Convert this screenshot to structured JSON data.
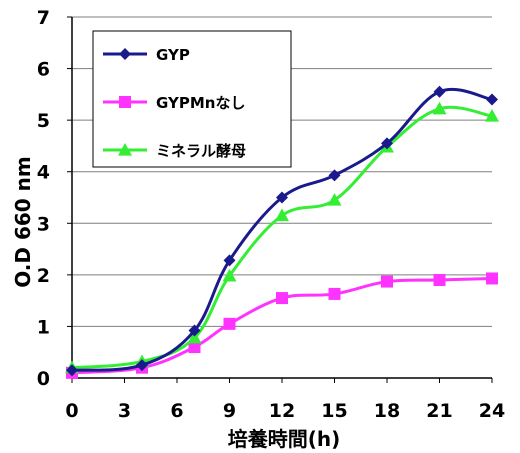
{
  "chart_data": {
    "type": "line",
    "xlabel": "培養時間(h)",
    "ylabel": "O.D 660 nm",
    "xlim": [
      0,
      24
    ],
    "ylim": [
      0,
      7
    ],
    "xticks": [
      "0",
      "3",
      "6",
      "9",
      "12",
      "15",
      "18",
      "21",
      "24"
    ],
    "yticks": [
      "0",
      "1",
      "2",
      "3",
      "4",
      "5",
      "6",
      "7"
    ],
    "grid": "horizontal",
    "legend_position": "top-left",
    "series": [
      {
        "name": "GYP",
        "color": "#1a1a8c",
        "marker": "diamond",
        "points": [
          [
            0,
            0.15
          ],
          [
            4,
            0.25
          ],
          [
            7,
            0.92
          ],
          [
            9,
            2.28
          ],
          [
            12,
            3.5
          ],
          [
            15,
            3.93
          ],
          [
            18,
            4.55
          ],
          [
            21,
            5.55
          ],
          [
            24,
            5.4
          ]
        ]
      },
      {
        "name": "GYPMnなし",
        "color": "#ff33ff",
        "marker": "square",
        "points": [
          [
            0,
            0.1
          ],
          [
            4,
            0.2
          ],
          [
            7,
            0.6
          ],
          [
            9,
            1.05
          ],
          [
            12,
            1.55
          ],
          [
            15,
            1.63
          ],
          [
            18,
            1.87
          ],
          [
            21,
            1.9
          ],
          [
            24,
            1.93
          ]
        ]
      },
      {
        "name": "ミネラル酵母",
        "color": "#33ee33",
        "marker": "triangle",
        "points": [
          [
            0,
            0.2
          ],
          [
            4,
            0.32
          ],
          [
            7,
            0.78
          ],
          [
            9,
            1.98
          ],
          [
            12,
            3.15
          ],
          [
            15,
            3.45
          ],
          [
            18,
            4.48
          ],
          [
            21,
            5.22
          ],
          [
            24,
            5.08
          ]
        ]
      }
    ]
  }
}
